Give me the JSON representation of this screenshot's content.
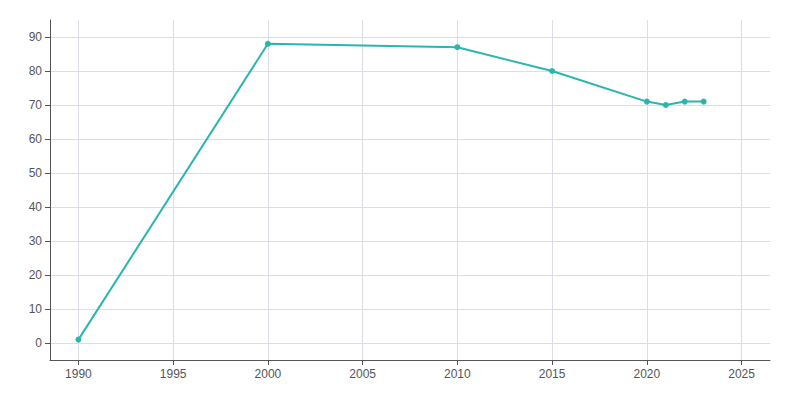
{
  "chart_data": {
    "type": "line",
    "x": [
      1990,
      2000,
      2010,
      2015,
      2020,
      2021,
      2022,
      2023
    ],
    "values": [
      1,
      88,
      87,
      80,
      71,
      70,
      71,
      71
    ],
    "color": "#2ab5b0",
    "marker": "circle",
    "xlim": [
      1988.5,
      2026.5
    ],
    "ylim": [
      -5,
      95
    ],
    "xticks": [
      1990,
      1995,
      2000,
      2005,
      2010,
      2015,
      2020,
      2025
    ],
    "yticks": [
      0,
      10,
      20,
      30,
      40,
      50,
      60,
      70,
      80,
      90
    ],
    "grid": true
  }
}
